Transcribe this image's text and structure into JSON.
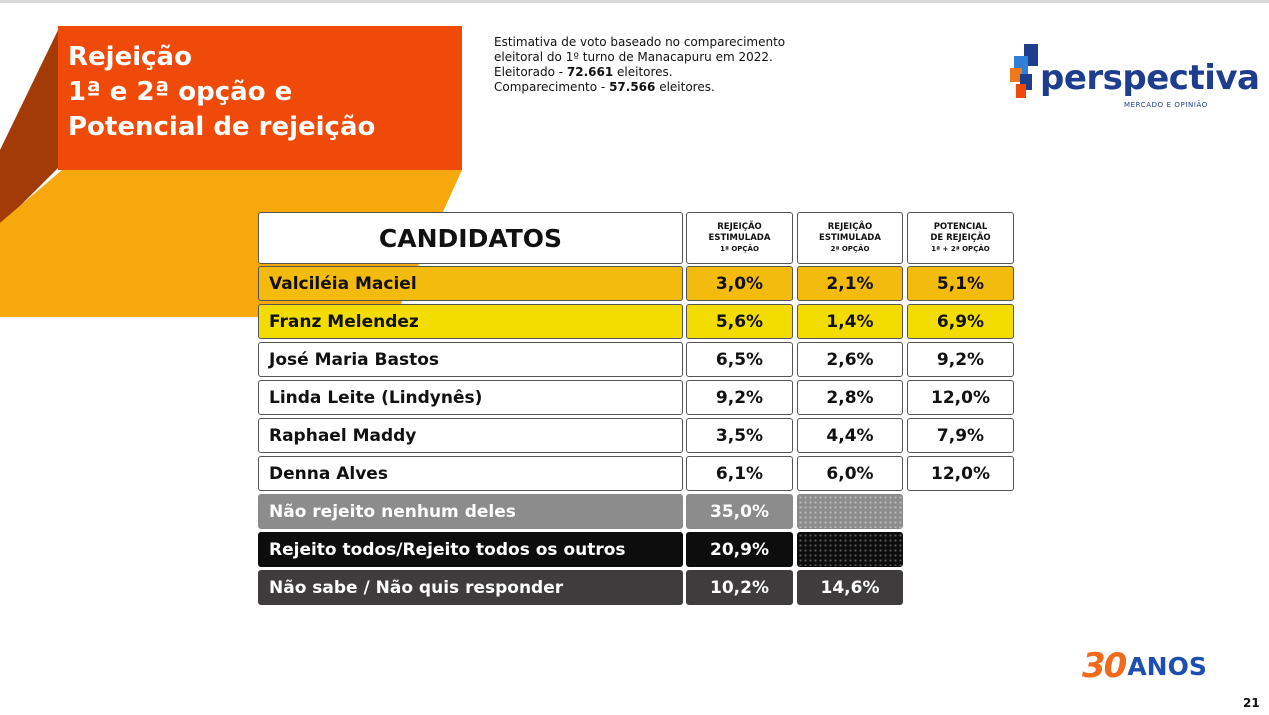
{
  "title": {
    "line1": "Rejeição",
    "line2": "1ª e 2ª opção e",
    "line3": "Potencial de rejeição"
  },
  "subtitle": {
    "line1": "Estimativa de voto baseado no comparecimento",
    "line2": "eleitoral do 1º turno de Manacapuru em 2022.",
    "electorate_label": "Eleitorado - ",
    "electorate_value": "72.661",
    "electorate_unit": " eleitores.",
    "turnout_label": "Comparecimento - ",
    "turnout_value": "57.566",
    "turnout_unit": " eleitores."
  },
  "logo": {
    "word": "perspectiva",
    "tagline": "MERCADO E OPINIÃO",
    "icon": "perspectiva-cube-icon"
  },
  "table": {
    "header": "CANDIDATOS",
    "col1": {
      "line1": "REJEIÇÃO",
      "line2": "ESTIMULADA",
      "line3": "1ª OPÇÃO"
    },
    "col2": {
      "line1": "REJEIÇÃO",
      "line2": "ESTIMULADA",
      "line3": "2ª OPÇÃO"
    },
    "col3": {
      "line1": "POTENCIAL",
      "line2": "DE REJEIÇÃO",
      "line3": "1ª + 2ª OPÇÃO"
    },
    "rows": [
      {
        "name": "Valciléia Maciel",
        "v1": "3,0%",
        "v2": "2,1%",
        "v3": "5,1%"
      },
      {
        "name": "Franz Melendez",
        "v1": "5,6%",
        "v2": "1,4%",
        "v3": "6,9%"
      },
      {
        "name": "José Maria Bastos",
        "v1": "6,5%",
        "v2": "2,6%",
        "v3": "9,2%"
      },
      {
        "name": "Linda Leite (Lindynês)",
        "v1": "9,2%",
        "v2": "2,8%",
        "v3": "12,0%"
      },
      {
        "name": "Raphael Maddy",
        "v1": "3,5%",
        "v2": "4,4%",
        "v3": "7,9%"
      },
      {
        "name": "Denna Alves",
        "v1": "6,1%",
        "v2": "6,0%",
        "v3": "12,0%"
      }
    ],
    "extra": [
      {
        "name": "Não rejeito nenhum deles",
        "v1": "35,0%"
      },
      {
        "name": "Rejeito todos/Rejeito todos os outros",
        "v1": "20,9%"
      },
      {
        "name": "Não sabe / Não quis responder",
        "v1": "10,2%",
        "v2": "14,6%"
      }
    ]
  },
  "colors": {
    "title_bg": "#f04a0a",
    "accent_yellow": "#f7a80c",
    "row_orange": "#f2bb0d",
    "row_yellow": "#f3dd00",
    "brand_blue": "#1e3d8f"
  },
  "badge": {
    "number": "30",
    "word": "ANOS"
  },
  "page_number": "21"
}
